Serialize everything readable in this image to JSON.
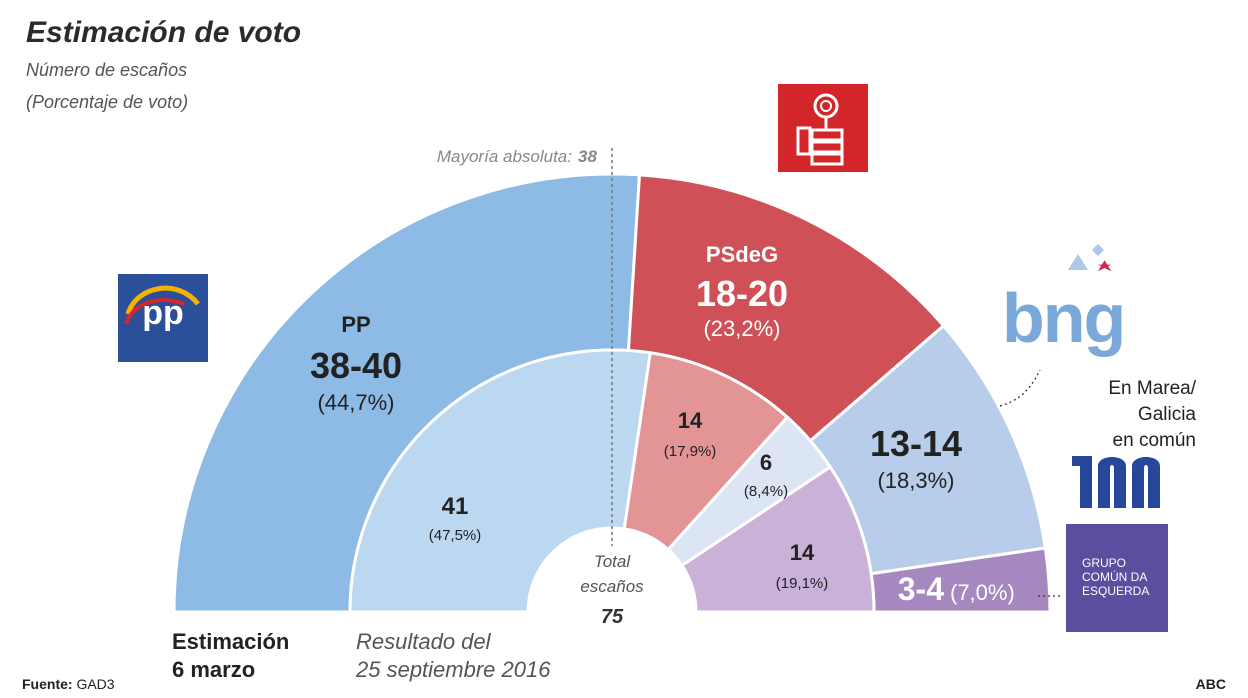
{
  "title": "Estimación de voto",
  "subtitle_1": "Número de escaños",
  "subtitle_2": "(Porcentaje de voto)",
  "majority": {
    "label": "Mayoría absoluta:",
    "value": "38"
  },
  "total": {
    "line1": "Total",
    "line2": "escaños",
    "value": "75"
  },
  "labels": {
    "estimate_line1": "Estimación",
    "estimate_line2": "6 marzo",
    "result_line1": "Resultado del",
    "result_line2": "25 septiembre 2016"
  },
  "footer": {
    "source_label": "Fuente:",
    "source_value": "GAD3",
    "brand": "ABC"
  },
  "logos": {
    "pp_text": "pp",
    "bng_text": "bng",
    "marea_line1": "En Marea/",
    "marea_line2": "Galicia",
    "marea_line3": "en común",
    "ge_line1": "GRUPO",
    "ge_line2": "COMÚN DA",
    "ge_line3": "ESQUERDA"
  },
  "colors": {
    "pp": "#8dbbe6",
    "pp_inner": "#bcd7f0",
    "psdeg": "#cf5157",
    "psdeg_inner": "#e39596",
    "marea": "#b8cde9",
    "marea_inner": "#dbe5f4",
    "ge": "#a787bf",
    "ge_inner": "#c9b1d7"
  },
  "chart_data": [
    {
      "type": "half-donut",
      "name": "Estimación 6 marzo",
      "series": [
        {
          "party": "PP",
          "seats": "38-40",
          "seats_value": 39,
          "percent": "(44,7%)"
        },
        {
          "party": "PSdeG",
          "seats": "18-20",
          "seats_value": 19,
          "percent": "(23,2%)"
        },
        {
          "party": "",
          "seats": "13-14",
          "seats_value": 13.5,
          "percent": "(18,3%)"
        },
        {
          "party": "",
          "seats": "3-4",
          "seats_value": 3.5,
          "percent": "(7,0%)"
        }
      ]
    },
    {
      "type": "half-donut",
      "name": "Resultado del 25 septiembre 2016",
      "series": [
        {
          "seats": "41",
          "seats_value": 41,
          "percent": "(47,5%)"
        },
        {
          "seats": "14",
          "seats_value": 14,
          "percent": "(17,9%)"
        },
        {
          "seats": "6",
          "seats_value": 6,
          "percent": "(8,4%)"
        },
        {
          "seats": "14",
          "seats_value": 14,
          "percent": "(19,1%)"
        }
      ]
    }
  ]
}
